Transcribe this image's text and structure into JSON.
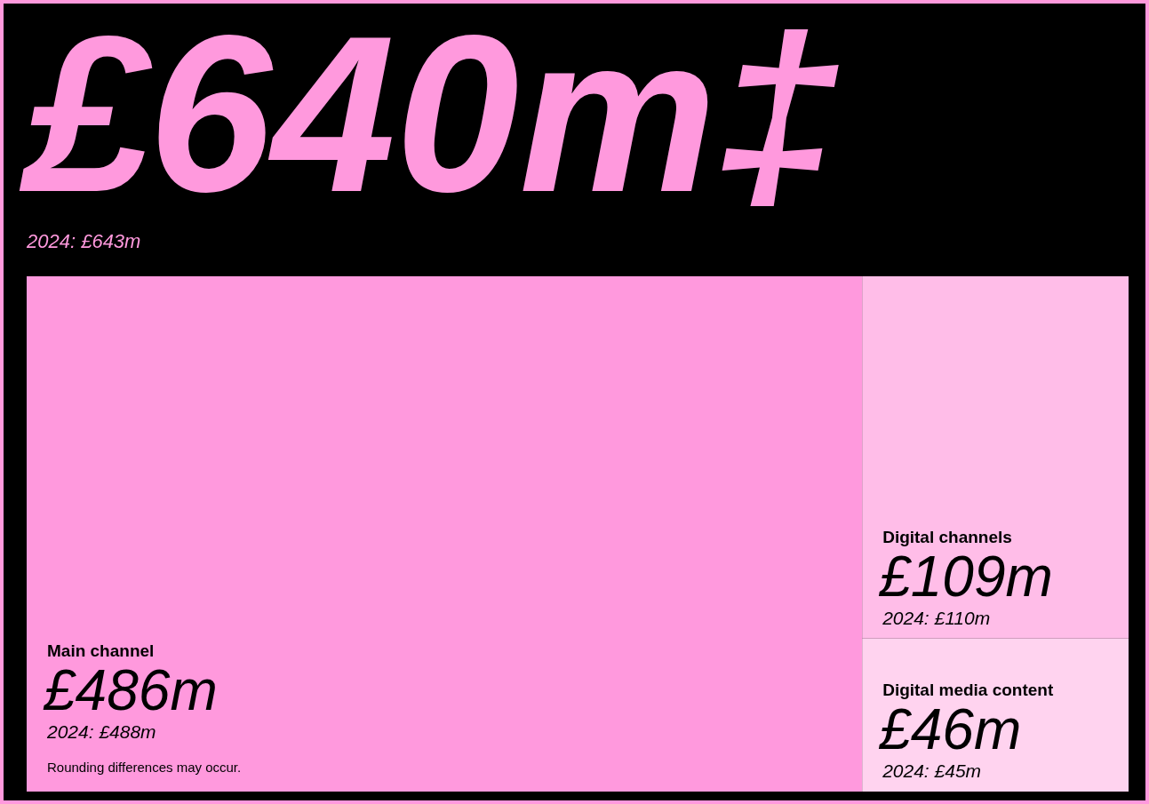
{
  "chart_data": {
    "type": "other",
    "title": "£640m‡",
    "subtitle": "2024: £643m",
    "categories": [
      "Main channel",
      "Digital channels",
      "Digital media content"
    ],
    "values": [
      486,
      109,
      46
    ],
    "value_labels": [
      "£486m",
      "£109m",
      "£46m"
    ],
    "colors": [
      "#ff99dd",
      "#ffbde8",
      "#ffd3ef"
    ],
    "annotations": [
      "2024: £488m",
      "2024: £110m",
      "2024: £45m",
      "Rounding differences may occur."
    ]
  }
}
